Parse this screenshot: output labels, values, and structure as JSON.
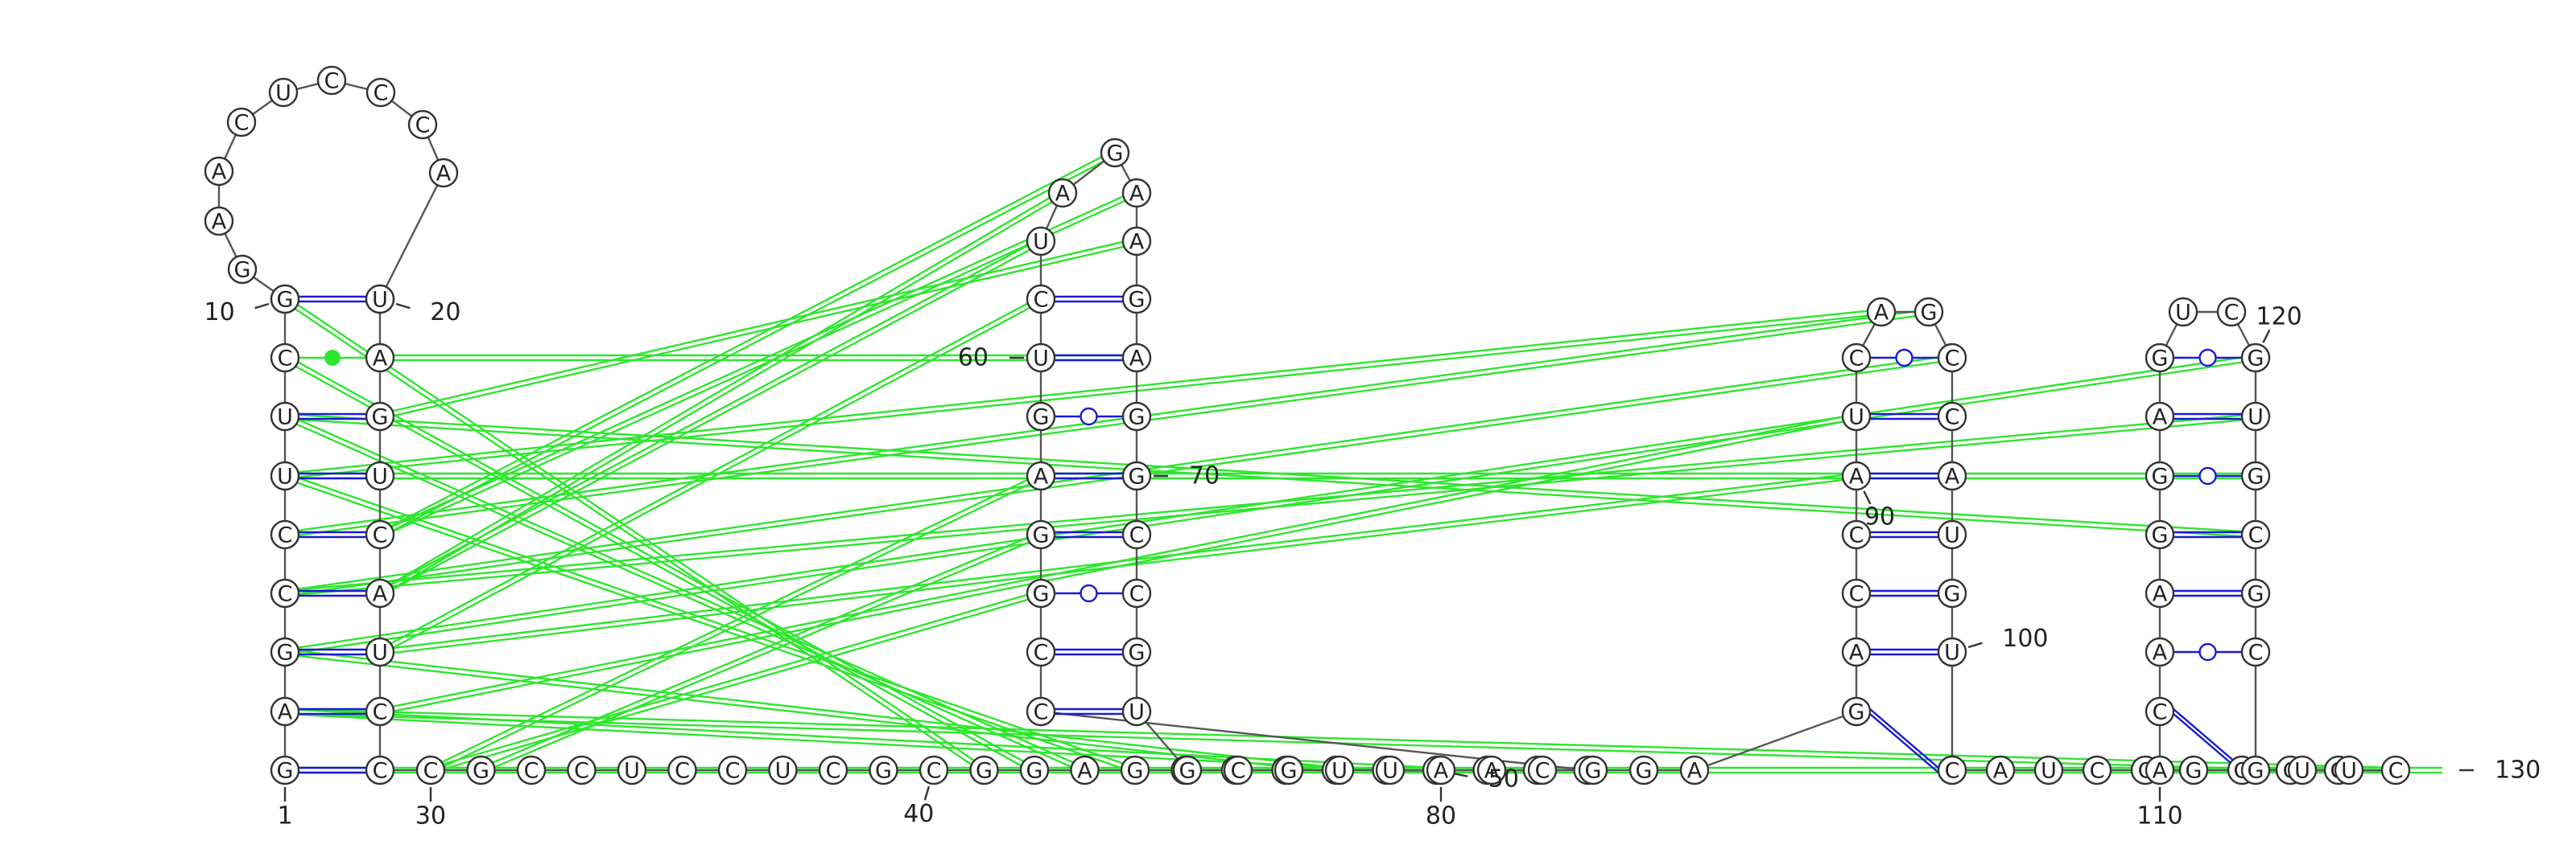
{
  "sequence": "GAGCCUUCAGGAACUCCCAUUAGUCAUCCCGCCUCCUCGCGGAGCGCAGGGAACCGGAGUCUAGAAGAGGCCGUGCGUUAACGGAGACCAUCAGCCAUGUCAUCCGGCGACAAGGAGUCGUGCGCGUUC",
  "labels": [
    {
      "n": 1,
      "text": "1"
    },
    {
      "n": 10,
      "text": "10"
    },
    {
      "n": 20,
      "text": "20"
    },
    {
      "n": 30,
      "text": "30"
    },
    {
      "n": 40,
      "text": "40"
    },
    {
      "n": 50,
      "text": "50"
    },
    {
      "n": 60,
      "text": "60"
    },
    {
      "n": 70,
      "text": "70"
    },
    {
      "n": 80,
      "text": "80"
    },
    {
      "n": 90,
      "text": "90"
    },
    {
      "n": 100,
      "text": "100"
    },
    {
      "n": 110,
      "text": "110"
    },
    {
      "n": 120,
      "text": "120"
    },
    {
      "n": 130,
      "text": "130"
    }
  ],
  "pairs": [
    {
      "i": 1,
      "j": 29,
      "type": "canonical"
    },
    {
      "i": 2,
      "j": 28,
      "type": "canonical"
    },
    {
      "i": 3,
      "j": 27,
      "type": "canonical"
    },
    {
      "i": 4,
      "j": 26,
      "type": "canonical"
    },
    {
      "i": 5,
      "j": 25,
      "type": "canonical"
    },
    {
      "i": 6,
      "j": 24,
      "type": "canonical"
    },
    {
      "i": 7,
      "j": 23,
      "type": "canonical"
    },
    {
      "i": 8,
      "j": 22,
      "type": "noncanonical"
    },
    {
      "i": 9,
      "j": 21,
      "type": "canonical"
    },
    {
      "i": 54,
      "j": 66,
      "type": "canonical"
    },
    {
      "i": 55,
      "j": 65,
      "type": "canonical"
    },
    {
      "i": 56,
      "j": 64,
      "type": "gu"
    },
    {
      "i": 57,
      "j": 63,
      "type": "canonical"
    },
    {
      "i": 58,
      "j": 62,
      "type": "canonical"
    },
    {
      "i": 59,
      "j": 61,
      "type": "gu"
    },
    {
      "i": 60,
      "j": 60,
      "type": "none"
    },
    {
      "i": 86,
      "j": 98,
      "type": "canonical"
    },
    {
      "i": 87,
      "j": 97,
      "type": "canonical"
    },
    {
      "i": 88,
      "j": 96,
      "type": "canonical"
    },
    {
      "i": 89,
      "j": 95,
      "type": "canonical"
    },
    {
      "i": 90,
      "j": 94,
      "type": "canonical"
    },
    {
      "i": 91,
      "j": 93,
      "type": "canonical"
    },
    {
      "i": 92,
      "j": 100,
      "type": "gu"
    },
    {
      "i": 112,
      "j": 124,
      "type": "gu"
    },
    {
      "i": 113,
      "j": 123,
      "type": "canonical"
    },
    {
      "i": 114,
      "j": 122,
      "type": "canonical"
    },
    {
      "i": 115,
      "j": 121,
      "type": "canonical"
    },
    {
      "i": 116,
      "j": 120,
      "type": "gu"
    },
    {
      "i": 117,
      "j": 119,
      "type": "canonical"
    }
  ],
  "colors": {
    "backbone": "#555555",
    "basepair": "#1a1ad6",
    "pseudoknot": "#2ee62e",
    "circle_stroke": "#333333"
  }
}
